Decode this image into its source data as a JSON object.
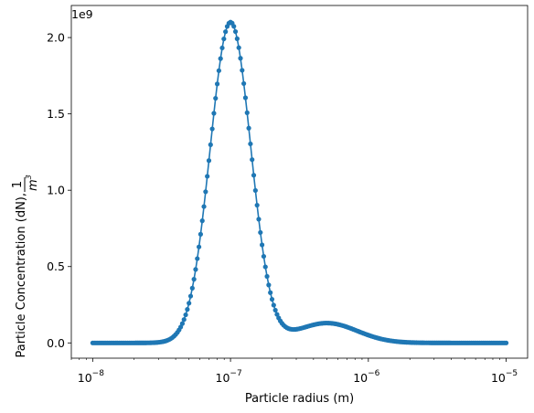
{
  "chart_data": {
    "type": "line",
    "title": "",
    "xlabel": "Particle radius (m)",
    "ylabel_text": "Particle Concentration (dN), ",
    "ylabel_frac_num": "1",
    "ylabel_frac_den": "m",
    "ylabel_frac_den_exp": "3",
    "y_offset_label": "1e9",
    "xscale": "log",
    "xlim": [
      7e-09,
      1.43e-05
    ],
    "ylim": [
      -0.1,
      2.21
    ],
    "x_ticks": [
      {
        "value": 1e-08,
        "base": "10",
        "exp": "−8"
      },
      {
        "value": 1e-07,
        "base": "10",
        "exp": "−7"
      },
      {
        "value": 1e-06,
        "base": "10",
        "exp": "−6"
      },
      {
        "value": 1e-05,
        "base": "10",
        "exp": "−5"
      }
    ],
    "y_ticks": [
      {
        "value": 0.0,
        "label": "0.0"
      },
      {
        "value": 0.5,
        "label": "0.5"
      },
      {
        "value": 1.0,
        "label": "1.0"
      },
      {
        "value": 1.5,
        "label": "1.5"
      },
      {
        "value": 2.0,
        "label": "2.0"
      }
    ],
    "series": [
      {
        "name": "particle concentration",
        "color": "#1f77b4",
        "marker": "circle",
        "n_points": 250,
        "x_range": [
          1e-08,
          1e-05
        ],
        "modes": [
          {
            "peak_x": 1e-07,
            "peak_y": 2.1,
            "log10_sigma": 0.1474
          },
          {
            "peak_x": 5e-07,
            "peak_y": 0.13,
            "log10_sigma": 0.22
          }
        ]
      }
    ]
  }
}
